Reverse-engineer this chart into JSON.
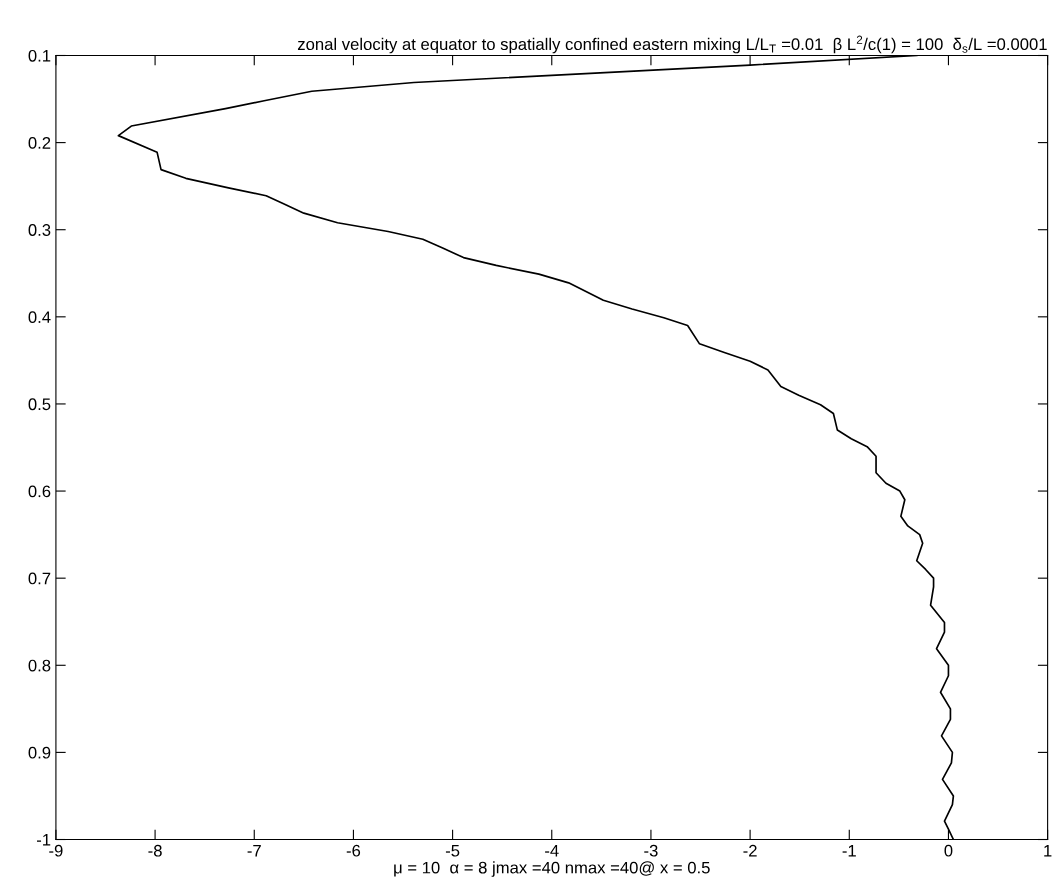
{
  "chart_data": {
    "type": "line",
    "title": "zonal velocity at equator to spatially confined eastern mixing L/L$_{T}$ =0.01  β L$^{2}$/c(1) = 100  δ$_{s}$/L =0.0001",
    "xlabel": "μ = 10  α = 8 jmax =40 nmax =40@ x = 0.5",
    "series": [
      {
        "color": "#000000",
        "x": [
          -0.32,
          -2.0,
          -5.39,
          -6.42,
          -6.9,
          -7.29,
          -8.24,
          -8.37,
          -7.98,
          -7.94,
          -7.69,
          -7.26,
          -6.88,
          -6.71,
          -6.5,
          -6.16,
          -5.65,
          -5.3,
          -5.1,
          -4.89,
          -4.56,
          -4.13,
          -3.83,
          -3.48,
          -3.19,
          -2.87,
          -2.63,
          -2.51,
          -2.26,
          -2.0,
          -1.82,
          -1.69,
          -1.51,
          -1.29,
          -1.16,
          -1.12,
          -0.98,
          -0.82,
          -0.73,
          -0.73,
          -0.63,
          -0.49,
          -0.44,
          -0.48,
          -0.41,
          -0.29,
          -0.26,
          -0.32,
          -0.23,
          -0.15,
          -0.15,
          -0.18,
          -0.04,
          -0.04,
          -0.12,
          0.0,
          0.0,
          -0.08,
          0.02,
          0.02,
          -0.07,
          0.04,
          0.03,
          -0.06,
          0.05,
          0.04,
          -0.04,
          0.0,
          0.05
        ],
        "values": [
          -0.1,
          -0.111,
          -0.131,
          -0.141,
          -0.152,
          -0.161,
          -0.181,
          -0.192,
          -0.211,
          -0.231,
          -0.241,
          -0.252,
          -0.261,
          -0.27,
          -0.281,
          -0.292,
          -0.302,
          -0.311,
          -0.321,
          -0.332,
          -0.341,
          -0.351,
          -0.361,
          -0.381,
          -0.391,
          -0.401,
          -0.41,
          -0.431,
          -0.441,
          -0.451,
          -0.461,
          -0.48,
          -0.49,
          -0.501,
          -0.511,
          -0.53,
          -0.54,
          -0.549,
          -0.56,
          -0.579,
          -0.591,
          -0.6,
          -0.61,
          -0.629,
          -0.64,
          -0.65,
          -0.66,
          -0.68,
          -0.69,
          -0.7,
          -0.71,
          -0.731,
          -0.751,
          -0.762,
          -0.781,
          -0.8,
          -0.812,
          -0.831,
          -0.85,
          -0.862,
          -0.881,
          -0.9,
          -0.912,
          -0.931,
          -0.95,
          -0.96,
          -0.979,
          -0.988,
          -1.0
        ]
      }
    ],
    "xlim": [
      -9,
      1
    ],
    "xticks": [
      -9,
      -8,
      -7,
      -6,
      -5,
      -4,
      -3,
      -2,
      -1,
      0,
      1
    ],
    "ylim": [
      -1,
      -0.1
    ],
    "yticks": [
      {
        "value": -0.1,
        "label": "0.1"
      },
      {
        "value": -0.2,
        "label": "0.2"
      },
      {
        "value": -0.3,
        "label": "0.3"
      },
      {
        "value": -0.4,
        "label": "0.4"
      },
      {
        "value": -0.5,
        "label": "0.5"
      },
      {
        "value": -0.6,
        "label": "0.6"
      },
      {
        "value": -0.7,
        "label": "0.7"
      },
      {
        "value": -0.8,
        "label": "0.8"
      },
      {
        "value": -0.9,
        "label": "0.9"
      },
      {
        "value": -1,
        "label": "-1"
      }
    ],
    "grid": false,
    "legend": false,
    "marker": "none",
    "line_style": "solid"
  }
}
